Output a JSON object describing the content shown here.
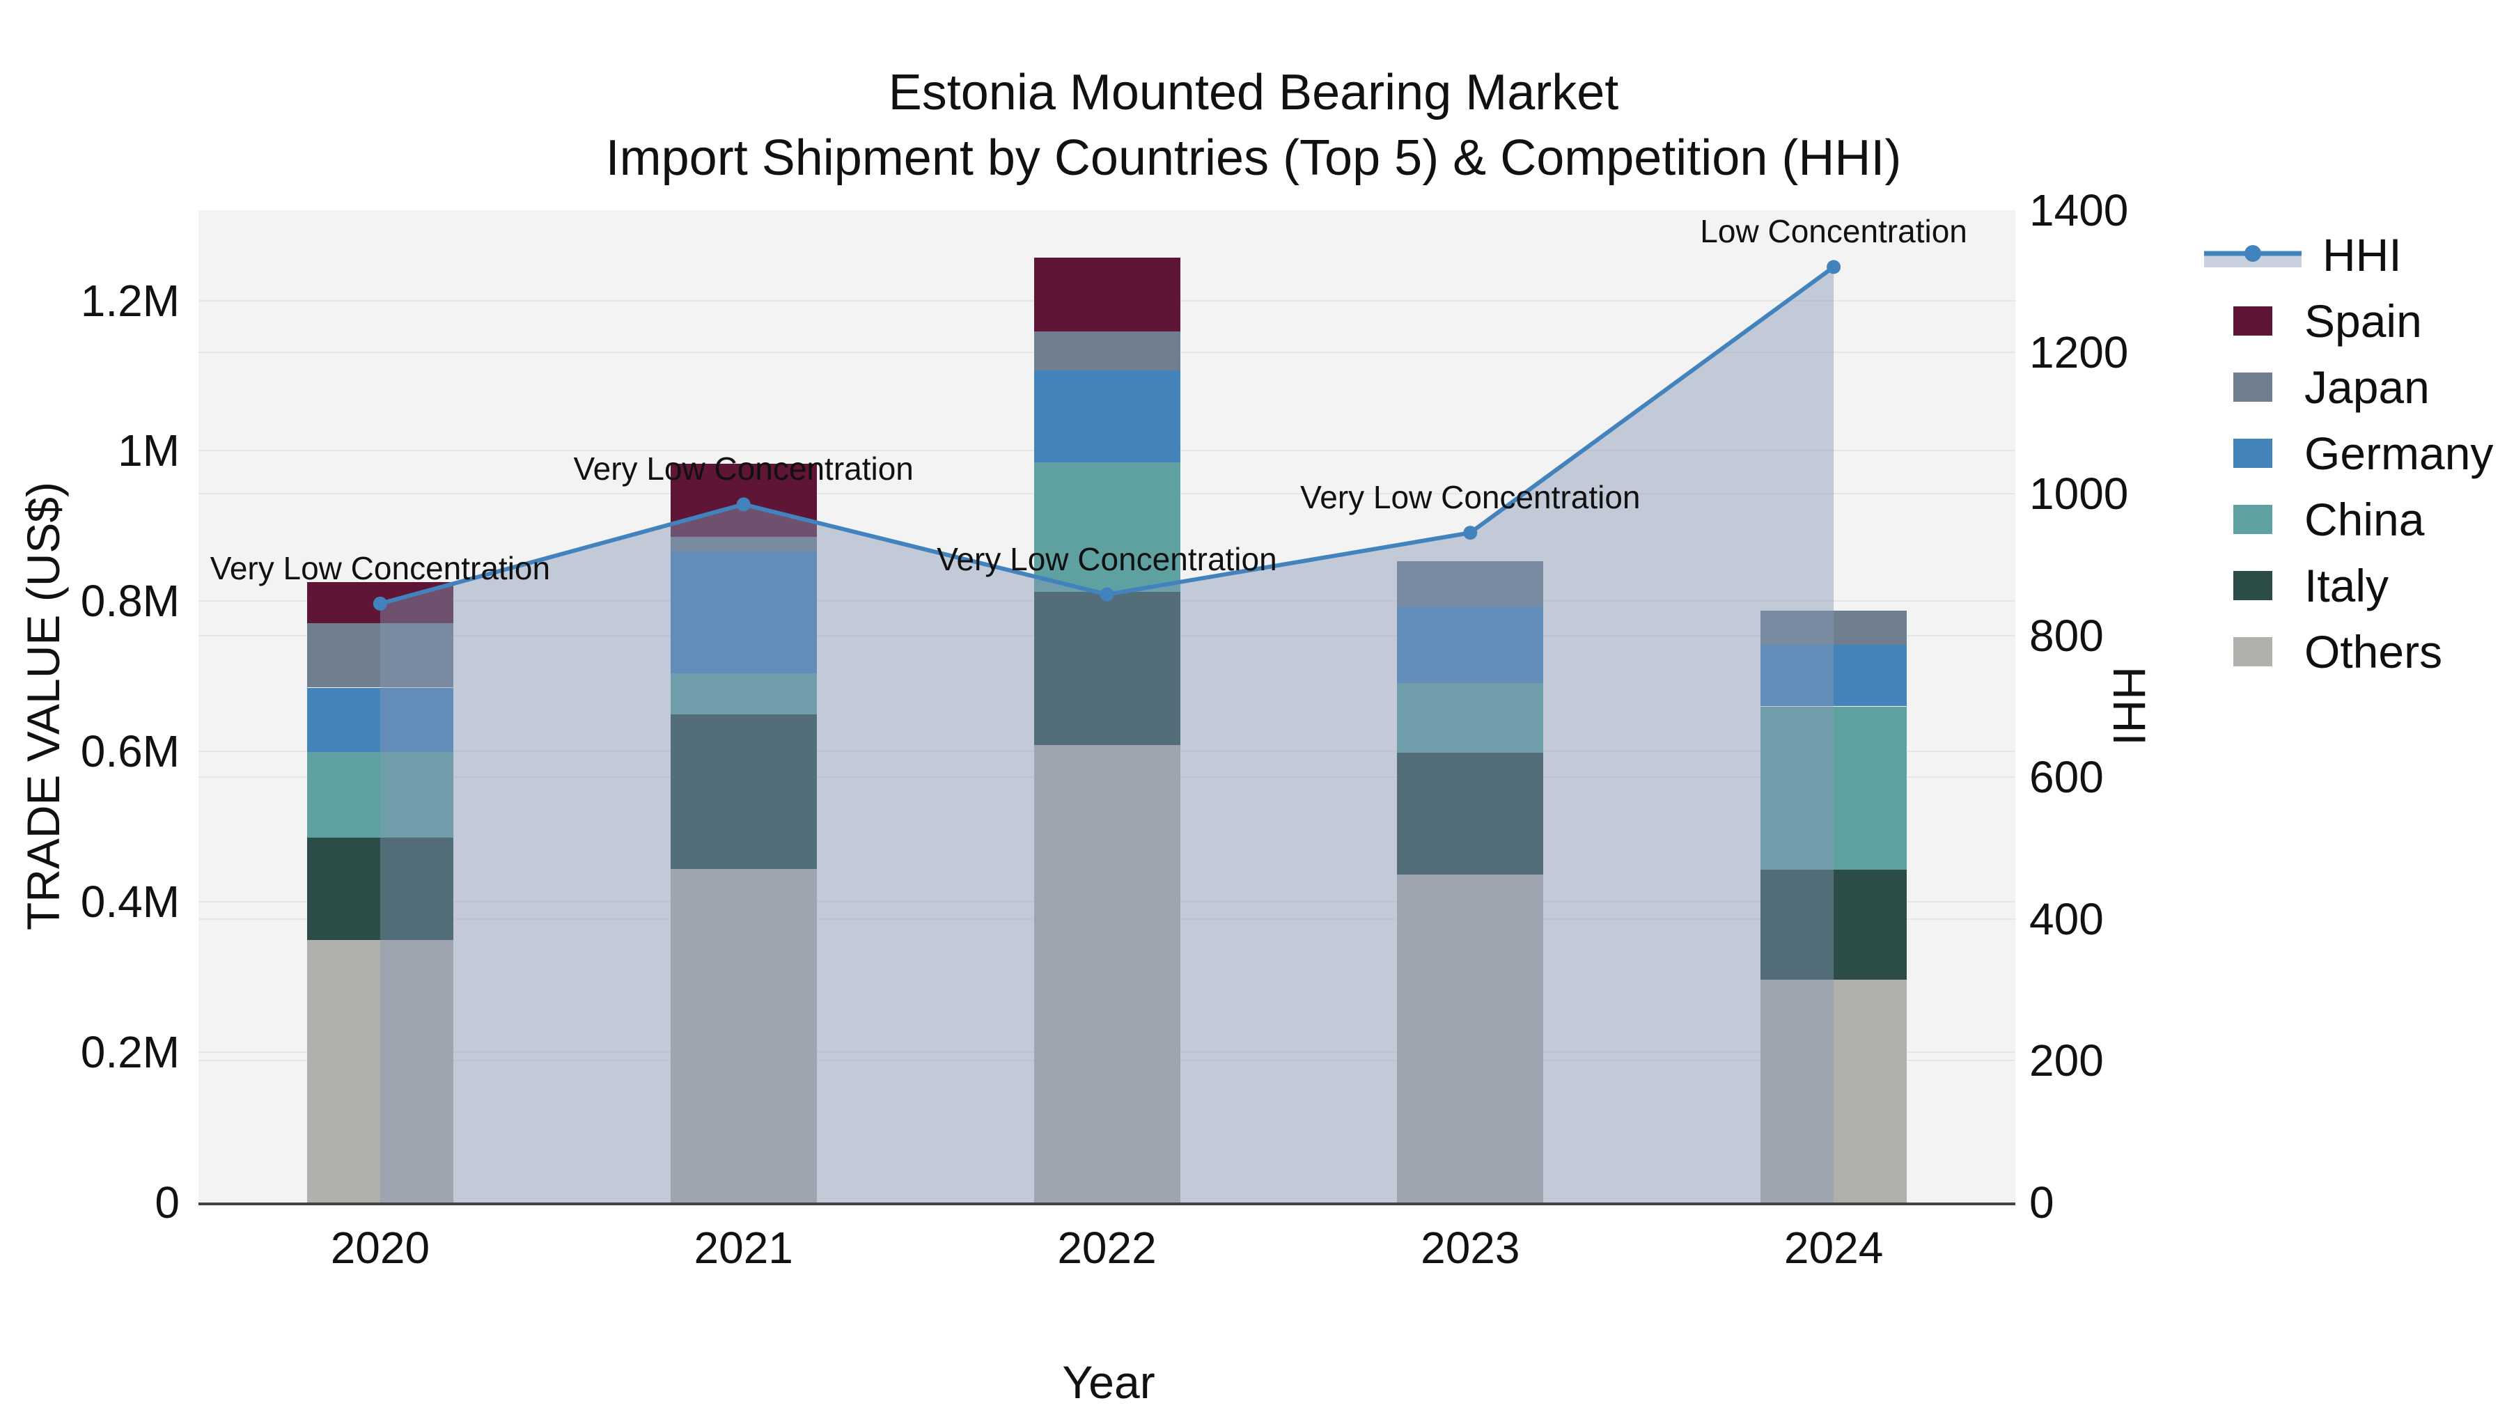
{
  "title": {
    "line1": "Estonia Mounted Bearing Market",
    "line2": "Import Shipment by Countries (Top 5) & Competition (HHI)"
  },
  "axes": {
    "x": {
      "title": "Year",
      "categories": [
        "2020",
        "2021",
        "2022",
        "2023",
        "2024"
      ]
    },
    "y_left": {
      "title": "TRADE VALUE (US$)",
      "tick_labels": [
        "0",
        "0.2M",
        "0.4M",
        "0.6M",
        "0.8M",
        "1M",
        "1.2M"
      ],
      "tick_values_musd": [
        0,
        0.2,
        0.4,
        0.6,
        0.8,
        1.0,
        1.2
      ],
      "range_musd": [
        0,
        1.32
      ],
      "grid": true
    },
    "y_right": {
      "title": "HHI",
      "tick_labels": [
        "0",
        "200",
        "400",
        "600",
        "800",
        "1000",
        "1200",
        "1400"
      ],
      "tick_values": [
        0,
        200,
        400,
        600,
        800,
        1000,
        1200,
        1400
      ],
      "range": [
        0,
        1400
      ],
      "grid": true
    }
  },
  "legend": {
    "position": "right",
    "items": [
      {
        "label": "HHI",
        "type": "line",
        "color": "#4283bd"
      },
      {
        "label": "Spain",
        "type": "swatch",
        "color": "#5e1536"
      },
      {
        "label": "Japan",
        "type": "swatch",
        "color": "#6f7f90"
      },
      {
        "label": "Germany",
        "type": "swatch",
        "color": "#4384bb"
      },
      {
        "label": "China",
        "type": "swatch",
        "color": "#5ea1a0"
      },
      {
        "label": "Italy",
        "type": "swatch",
        "color": "#2b4c47"
      },
      {
        "label": "Others",
        "type": "swatch",
        "color": "#b2b0ac"
      }
    ]
  },
  "chart_data": {
    "type": "bar",
    "subtype": "stacked-bar-with-line",
    "categories": [
      "2020",
      "2021",
      "2022",
      "2023",
      "2024"
    ],
    "bar_value_unit": "million US$",
    "stack_order_bottom_to_top": [
      "Others",
      "Italy",
      "China",
      "Germany",
      "Japan",
      "Spain"
    ],
    "series": [
      {
        "name": "Others",
        "color": "#b2b0ac",
        "values": [
          0.349,
          0.444,
          0.609,
          0.436,
          0.296
        ]
      },
      {
        "name": "Italy",
        "color": "#2b4c47",
        "values": [
          0.136,
          0.205,
          0.203,
          0.162,
          0.147
        ]
      },
      {
        "name": "China",
        "color": "#5ea1a0",
        "values": [
          0.114,
          0.055,
          0.173,
          0.093,
          0.217
        ]
      },
      {
        "name": "Germany",
        "color": "#4384bb",
        "values": [
          0.086,
          0.162,
          0.122,
          0.102,
          0.082
        ]
      },
      {
        "name": "Japan",
        "color": "#6f7f90",
        "values": [
          0.086,
          0.02,
          0.052,
          0.06,
          0.045
        ]
      },
      {
        "name": "Spain",
        "color": "#5e1536",
        "values": [
          0.054,
          0.097,
          0.098,
          0,
          0
        ]
      }
    ],
    "bar_totals_musd": [
      0.825,
      0.983,
      1.257,
      0.853,
      0.787
    ],
    "line_series": {
      "name": "HHI",
      "axis": "right",
      "color": "#4283bd",
      "fill": "tozeroy",
      "fill_color": "rgba(136,153,182,0.45)",
      "marker": "circle",
      "values": [
        845,
        985,
        858,
        945,
        1320
      ]
    },
    "annotations": [
      {
        "category": "2020",
        "text": "Very Low Concentration"
      },
      {
        "category": "2021",
        "text": "Very Low Concentration"
      },
      {
        "category": "2022",
        "text": "Very Low Concentration"
      },
      {
        "category": "2023",
        "text": "Very Low Concentration"
      },
      {
        "category": "2024",
        "text": "Low Concentration"
      }
    ],
    "xlabel": "Year",
    "ylabel_left": "TRADE VALUE (US$)",
    "ylabel_right": "HHI",
    "ylim_left_musd": [
      0,
      1.32
    ],
    "ylim_right": [
      0,
      1400
    ],
    "legend_position": "right",
    "plot_background": "#f3f3f4",
    "grid_color": "#e6e6e8"
  }
}
